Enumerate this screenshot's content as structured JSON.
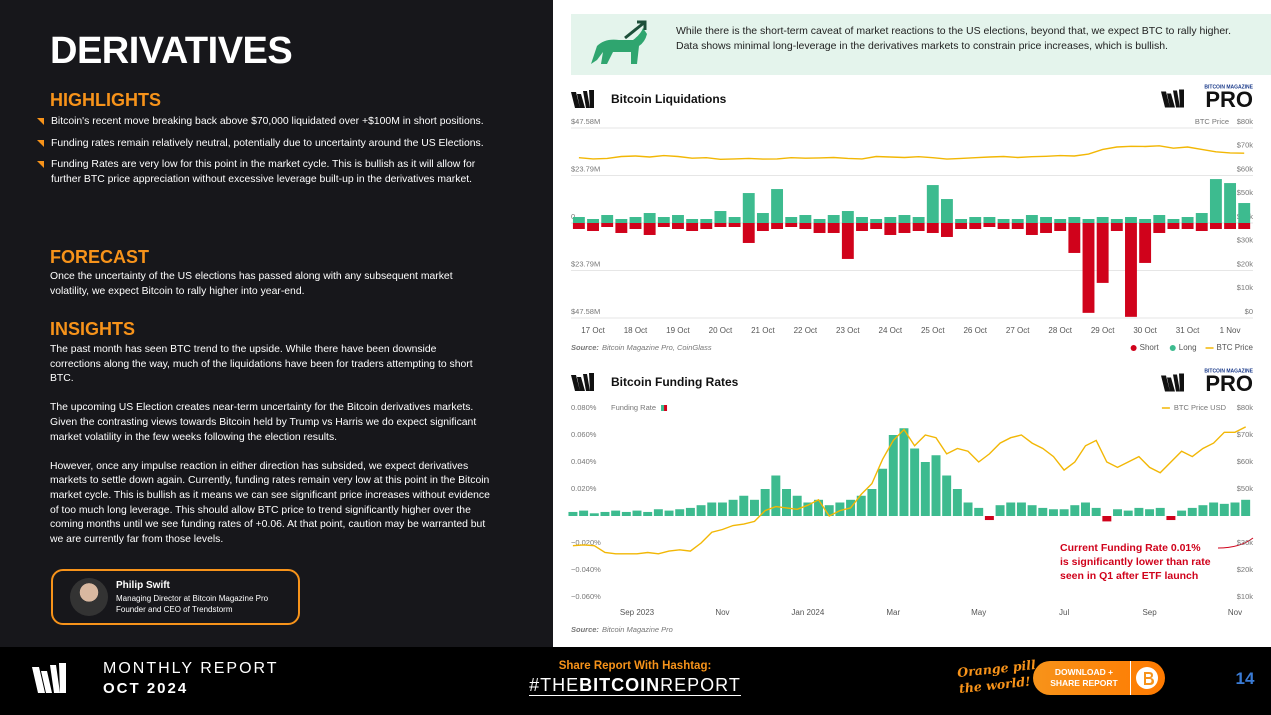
{
  "header": {
    "title": "DERIVATIVES"
  },
  "highlights": {
    "heading": "HIGHLIGHTS",
    "items": [
      "Bitcoin's recent move breaking back above $70,000 liquidated over +$100M in short positions.",
      "Funding rates remain relatively neutral, potentially due to uncertainty around the US Elections.",
      "Funding Rates are very low for this point in the market cycle. This is bullish as it will allow for further BTC price appreciation without excessive leverage built-up in the derivatives market."
    ]
  },
  "forecast": {
    "heading": "FORECAST",
    "text": "Once the uncertainty of the US elections has passed along with any subsequent market volatility, we expect Bitcoin to rally higher into year-end."
  },
  "insights": {
    "heading": "INSIGHTS",
    "paragraphs": [
      "The past month has seen BTC trend to the upside. While there have been downside corrections along the way, much of the liquidations have been for traders attempting to short BTC.",
      "The upcoming US Election creates near-term uncertainty for the Bitcoin derivatives markets. Given the contrasting views towards Bitcoin held by Trump vs Harris we do expect significant market volatility in the few weeks following the election results.",
      "However, once any impulse reaction in either direction has subsided, we expect derivatives markets to settle down again. Currently, funding rates remain very low at this point in the Bitcoin market cycle. This is bullish as it means we can see significant price increases without evidence of too much long leverage. This should allow BTC price to trend significantly higher over the coming months until we see funding rates of +0.06. At that point, caution may be warranted but we are currently far from those levels."
    ]
  },
  "author": {
    "name": "Philip Swift",
    "roles": [
      "Managing Director at Bitcoin Magazine Pro",
      "Founder and CEO of Trendstorm"
    ]
  },
  "banner": {
    "text": "While there is the short-term caveat of market reactions to the US elections, beyond that, we expect BTC to rally higher. Data shows minimal long-leverage in the derivatives markets to constrain price increases, which is bullish."
  },
  "brand": {
    "small": "BITCOIN MAGAZINE",
    "big": "PRO"
  },
  "chart_data": [
    {
      "type": "bar",
      "title": "Bitcoin Liquidations",
      "categories": [
        null,
        "17 Oct",
        null,
        null,
        "18 Oct",
        null,
        null,
        "19 Oct",
        null,
        null,
        "20 Oct",
        null,
        null,
        "21 Oct",
        null,
        null,
        "22 Oct",
        null,
        null,
        "23 Oct",
        null,
        null,
        "24 Oct",
        null,
        null,
        "25 Oct",
        null,
        null,
        "26 Oct",
        null,
        null,
        "27 Oct",
        null,
        null,
        "28 Oct",
        null,
        null,
        "29 Oct",
        null,
        null,
        "30 Oct",
        null,
        null,
        "31 Oct",
        null,
        null,
        "1 Nov",
        null
      ],
      "series": [
        {
          "name": "Short",
          "color": "#d0021b",
          "values": [
            -3,
            -4,
            -2,
            -5,
            -3,
            -6,
            -2,
            -3,
            -4,
            -3,
            -2,
            -2,
            -10,
            -4,
            -3,
            -2,
            -3,
            -5,
            -5,
            -18,
            -4,
            -3,
            -6,
            -5,
            -4,
            -5,
            -7,
            -3,
            -3,
            -2,
            -3,
            -3,
            -6,
            -5,
            -4,
            -15,
            -45,
            -30,
            -4,
            -47,
            -20,
            -5,
            -3,
            -3,
            -4,
            -3,
            -3,
            -3
          ]
        },
        {
          "name": "Long",
          "color": "#3dbb8f",
          "values": [
            3,
            2,
            4,
            2,
            3,
            5,
            3,
            4,
            2,
            2,
            6,
            3,
            15,
            5,
            17,
            3,
            4,
            2,
            4,
            6,
            3,
            2,
            3,
            4,
            3,
            19,
            12,
            2,
            3,
            3,
            2,
            2,
            4,
            3,
            2,
            3,
            2,
            3,
            2,
            3,
            2,
            4,
            2,
            3,
            5,
            22,
            20,
            10
          ]
        },
        {
          "name": "BTC Price",
          "color": "#f2b705",
          "axis": "y2",
          "values": [
            67500,
            67000,
            67200,
            68000,
            68200,
            67800,
            68400,
            68000,
            67300,
            67500,
            66800,
            67000,
            67200,
            66900,
            67000,
            67500,
            67300,
            67400,
            67600,
            67200,
            67000,
            68000,
            67800,
            67600,
            67900,
            67500,
            66900,
            67200,
            67500,
            67800,
            68000,
            67600,
            67900,
            68100,
            68400,
            68200,
            69000,
            71000,
            72000,
            72300,
            72200,
            72500,
            71500,
            72000,
            71000,
            70000,
            69500,
            69400
          ]
        }
      ],
      "ylim": [
        -47.58,
        47.58
      ],
      "yticks": [
        {
          "value": 47.58,
          "label": "$47.58M"
        },
        {
          "value": 23.79,
          "label": "$23.79M"
        },
        0,
        {
          "value": -23.79,
          "label": "$23.79M"
        },
        {
          "value": -47.58,
          "label": "$47.58M"
        }
      ],
      "y2lim": [
        0,
        80000
      ],
      "y2ticks": [
        {
          "value": 80000,
          "label": "$80k"
        },
        {
          "value": 70000,
          "label": "$70k"
        },
        {
          "value": 60000,
          "label": "$60k"
        },
        {
          "value": 50000,
          "label": "$50k"
        },
        {
          "value": 40000,
          "label": "$40k"
        },
        {
          "value": 30000,
          "label": "$30k"
        },
        {
          "value": 20000,
          "label": "$20k"
        },
        {
          "value": 10000,
          "label": "$10k"
        },
        {
          "value": 0,
          "label": "$0"
        }
      ],
      "y2_label": "BTC Price",
      "grid": true,
      "legend": "bottom-right",
      "source_label": "Source:",
      "source": "Bitcoin Magazine Pro, CoinGlass"
    },
    {
      "type": "bar",
      "title": "Bitcoin Funding Rates",
      "categories": [
        null,
        null,
        null,
        null,
        null,
        null,
        "Sep 2023",
        null,
        null,
        null,
        null,
        null,
        null,
        null,
        "Nov",
        null,
        null,
        null,
        null,
        null,
        null,
        null,
        "Jan 2024",
        null,
        null,
        null,
        null,
        null,
        null,
        null,
        "Mar",
        null,
        null,
        null,
        null,
        null,
        null,
        null,
        "May",
        null,
        null,
        null,
        null,
        null,
        null,
        null,
        "Jul",
        null,
        null,
        null,
        null,
        null,
        null,
        null,
        "Sep",
        null,
        null,
        null,
        null,
        null,
        null,
        null,
        "Nov",
        null
      ],
      "series": [
        {
          "name": "Funding Rate",
          "color": "#3dbb8f",
          "negative_color": "#d0021b",
          "values": [
            0.003,
            0.004,
            0.002,
            0.003,
            0.004,
            0.003,
            0.004,
            0.003,
            0.005,
            0.004,
            0.005,
            0.006,
            0.008,
            0.01,
            0.01,
            0.012,
            0.015,
            0.012,
            0.02,
            0.03,
            0.02,
            0.015,
            0.01,
            0.012,
            0.008,
            0.01,
            0.012,
            0.015,
            0.02,
            0.035,
            0.06,
            0.065,
            0.05,
            0.04,
            0.045,
            0.03,
            0.02,
            0.01,
            0.006,
            -0.003,
            0.008,
            0.01,
            0.01,
            0.008,
            0.006,
            0.005,
            0.005,
            0.008,
            0.01,
            0.006,
            -0.004,
            0.005,
            0.004,
            0.006,
            0.005,
            0.006,
            -0.003,
            0.004,
            0.006,
            0.008,
            0.01,
            0.009,
            0.01,
            0.012
          ]
        },
        {
          "name": "BTC Price USD",
          "color": "#f2b705",
          "axis": "y2",
          "values": [
            29000,
            29300,
            29000,
            26500,
            26000,
            26000,
            26000,
            26500,
            26000,
            27000,
            27500,
            27000,
            30000,
            34000,
            35000,
            36500,
            37000,
            38000,
            42000,
            43500,
            43000,
            42500,
            44000,
            46000,
            40000,
            42000,
            43000,
            48000,
            52000,
            61000,
            68000,
            72000,
            66000,
            70000,
            69000,
            63000,
            65000,
            64000,
            60000,
            63000,
            67000,
            69000,
            70000,
            67000,
            65000,
            62000,
            57000,
            60000,
            66000,
            68000,
            60000,
            58000,
            60000,
            62000,
            58000,
            56000,
            60000,
            64000,
            62000,
            65000,
            67000,
            71000,
            71000,
            73000
          ]
        }
      ],
      "ylim": [
        -0.06,
        0.08
      ],
      "yticks": [
        {
          "value": 0.08,
          "label": "0.080%"
        },
        {
          "value": 0.06,
          "label": "0.060%"
        },
        {
          "value": 0.04,
          "label": "0.040%"
        },
        {
          "value": 0.02,
          "label": "0.020%"
        },
        {
          "value": -0.02,
          "label": "−0.020%"
        },
        {
          "value": -0.04,
          "label": "−0.040%"
        },
        {
          "value": -0.06,
          "label": "−0.060%"
        }
      ],
      "y2lim": [
        10000,
        80000
      ],
      "y2ticks": [
        {
          "value": 80000,
          "label": "$80k"
        },
        {
          "value": 70000,
          "label": "$70k"
        },
        {
          "value": 60000,
          "label": "$60k"
        },
        {
          "value": 50000,
          "label": "$50k"
        },
        {
          "value": 30000,
          "label": "$30k"
        },
        {
          "value": 20000,
          "label": "$20k"
        },
        {
          "value": 10000,
          "label": "$10k"
        }
      ],
      "grid": false,
      "legend": "top",
      "annotation": [
        "Current Funding Rate 0.01%",
        "is significantly lower than rate",
        "seen in Q1 after ETF launch"
      ],
      "source_label": "Source:",
      "source": "Bitcoin Magazine Pro"
    }
  ],
  "footer": {
    "report": "MONTHLY REPORT",
    "period": "OCT 2024",
    "share": "Share Report With Hashtag:",
    "hashtag": [
      "#THE",
      "BITCOIN",
      "REPORT"
    ],
    "slogan": [
      "Orange pill",
      "the world!"
    ],
    "button": [
      "DOWNLOAD +",
      "SHARE REPORT"
    ],
    "page": "14"
  }
}
